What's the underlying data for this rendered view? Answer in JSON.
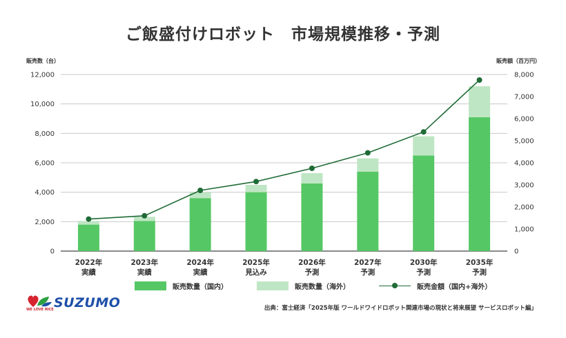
{
  "title": "ご飯盛付けロボット　市場規模推移・予測",
  "chart_data": {
    "type": "bar",
    "stacked": true,
    "categories": [
      [
        "2022年",
        "実績"
      ],
      [
        "2023年",
        "実績"
      ],
      [
        "2024年",
        "実績"
      ],
      [
        "2025年",
        "見込み"
      ],
      [
        "2026年",
        "予測"
      ],
      [
        "2027年",
        "予測"
      ],
      [
        "2030年",
        "予測"
      ],
      [
        "2035年",
        "予測"
      ]
    ],
    "series": [
      {
        "name": "販売数量（国内）",
        "type": "bar",
        "axis": "left",
        "color": "#56c765",
        "values": [
          1800,
          2050,
          3600,
          4000,
          4600,
          5400,
          6500,
          9100
        ]
      },
      {
        "name": "販売数量（海外）",
        "type": "bar",
        "axis": "left",
        "color": "#bfe6c4",
        "values": [
          250,
          280,
          400,
          500,
          700,
          900,
          1300,
          2100
        ]
      },
      {
        "name": "販売金額（国内+海外）",
        "type": "line",
        "axis": "right",
        "color": "#1f6b36",
        "values": [
          1450,
          1600,
          2750,
          3150,
          3750,
          4450,
          5400,
          7750
        ]
      }
    ],
    "yleft": {
      "label": "販売数（台）",
      "min": 0,
      "max": 12000,
      "ticks": [
        0,
        2000,
        4000,
        6000,
        8000,
        10000,
        12000
      ]
    },
    "yright": {
      "label": "販売額（百万円）",
      "min": 0,
      "max": 8000,
      "ticks": [
        0,
        1000,
        2000,
        3000,
        4000,
        5000,
        6000,
        7000,
        8000
      ]
    },
    "grid": true,
    "legend": "bottom"
  },
  "logo": {
    "tagline": "WE LOVE RICE",
    "name": "SUZUMO"
  },
  "source": "出典：富士経済「2025年版 ワールドワイドロボット関連市場の現状と将来展望 サービスロボット編」"
}
